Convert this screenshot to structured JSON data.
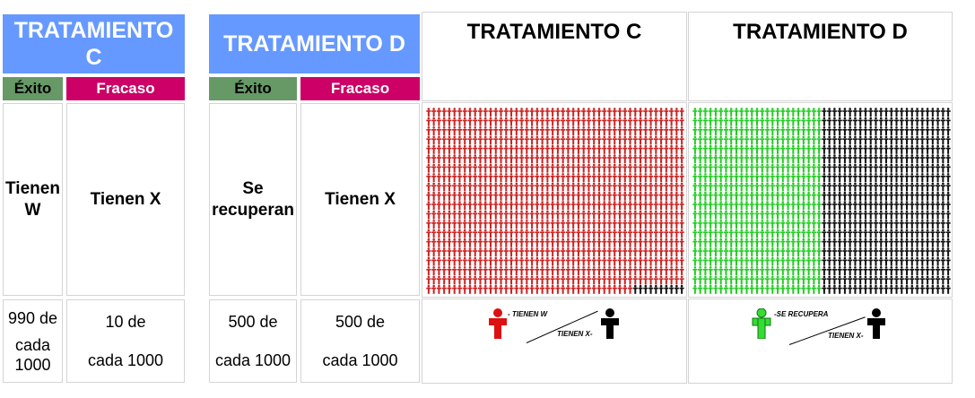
{
  "left_table": {
    "trat_c": {
      "title": "TRATAMIENTO C",
      "success": "Éxito",
      "failure": "Fracaso",
      "success_desc": "Tienen W",
      "failure_desc": "Tienen X",
      "success_num_a": "990 de",
      "success_num_b": "cada",
      "success_num_c": "1000",
      "failure_num_a": "10 de",
      "failure_num_b": "cada 1000"
    },
    "trat_d": {
      "title": "TRATAMIENTO D",
      "success": "Éxito",
      "failure": "Fracaso",
      "success_desc": "Se recuperan",
      "failure_desc": "Tienen X",
      "success_num_a": "500 de",
      "success_num_b": "cada 1000",
      "failure_num_a": "500 de",
      "failure_num_b": "cada 1000"
    }
  },
  "right_table": {
    "panel_c": {
      "title": "TRATAMIENTO C",
      "success_count": 990,
      "failure_count": 10,
      "success_color": "#cc2222",
      "failure_color": "#111111",
      "legend_success": "- TIENEN W",
      "legend_failure": "TIENEN X-"
    },
    "panel_d": {
      "title": "TRATAMIENTO D",
      "success_count": 500,
      "failure_count": 500,
      "success_color": "#22cc22",
      "failure_color": "#111111",
      "legend_success": "-SE RECUPERA",
      "legend_failure": "TIENEN X-"
    }
  },
  "icons": {
    "figure": "person-icon"
  }
}
